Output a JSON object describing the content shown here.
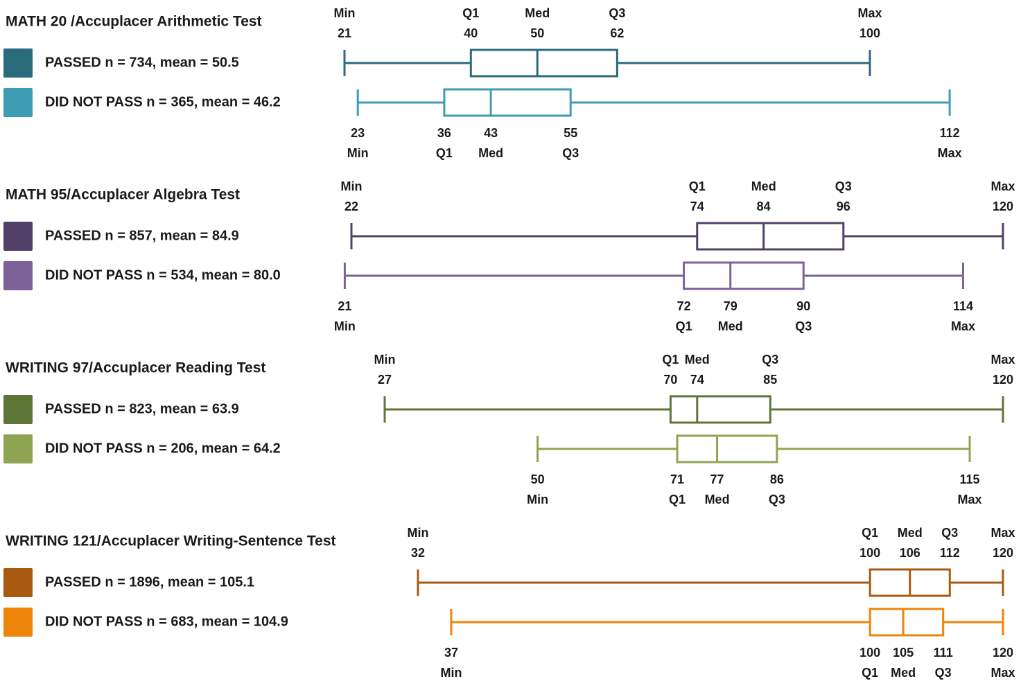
{
  "chart_data": [
    {
      "type": "boxplot",
      "title": "MATH 20 /Accuplacer Arithmetic Test",
      "series": [
        {
          "label": "PASSED  n = 734, mean = 50.5",
          "color": "#2a6b7c",
          "min": 21,
          "q1": 40,
          "med": 50,
          "q3": 62,
          "max": 100
        },
        {
          "label": "DID NOT PASS  n = 365, mean = 46.2",
          "color": "#3e9cb3",
          "min": 23,
          "q1": 36,
          "med": 43,
          "q3": 55,
          "max": 112
        }
      ]
    },
    {
      "type": "boxplot",
      "title": "MATH 95/Accuplacer Algebra Test",
      "series": [
        {
          "label": "PASSED  n = 857, mean = 84.9",
          "color": "#51406a",
          "min": 22,
          "q1": 74,
          "med": 84,
          "q3": 96,
          "max": 120
        },
        {
          "label": "DID NOT PASS  n = 534, mean = 80.0",
          "color": "#7c6299",
          "min": 21,
          "q1": 72,
          "med": 79,
          "q3": 90,
          "max": 114
        }
      ]
    },
    {
      "type": "boxplot",
      "title": "WRITING 97/Accuplacer Reading Test",
      "series": [
        {
          "label": "PASSED  n = 823, mean = 63.9",
          "color": "#5e7538",
          "min": 27,
          "q1": 70,
          "med": 74,
          "q3": 85,
          "max": 120
        },
        {
          "label": "DID NOT PASS  n = 206, mean = 64.2",
          "color": "#8da551",
          "min": 50,
          "q1": 71,
          "med": 77,
          "q3": 86,
          "max": 115
        }
      ]
    },
    {
      "type": "boxplot",
      "title": "WRITING 121/Accuplacer Writing-Sentence Test",
      "series": [
        {
          "label": "PASSED  n = 1896, mean = 105.1",
          "color": "#a85a10",
          "min": 32,
          "q1": 100,
          "med": 106,
          "q3": 112,
          "max": 120
        },
        {
          "label": "DID NOT PASS  n = 683, mean = 104.9",
          "color": "#ee8508",
          "min": 37,
          "q1": 100,
          "med": 105,
          "q3": 111,
          "max": 120
        }
      ]
    }
  ],
  "stat_labels": {
    "min": "Min",
    "q1": "Q1",
    "med": "Med",
    "q3": "Q3",
    "max": "Max"
  }
}
